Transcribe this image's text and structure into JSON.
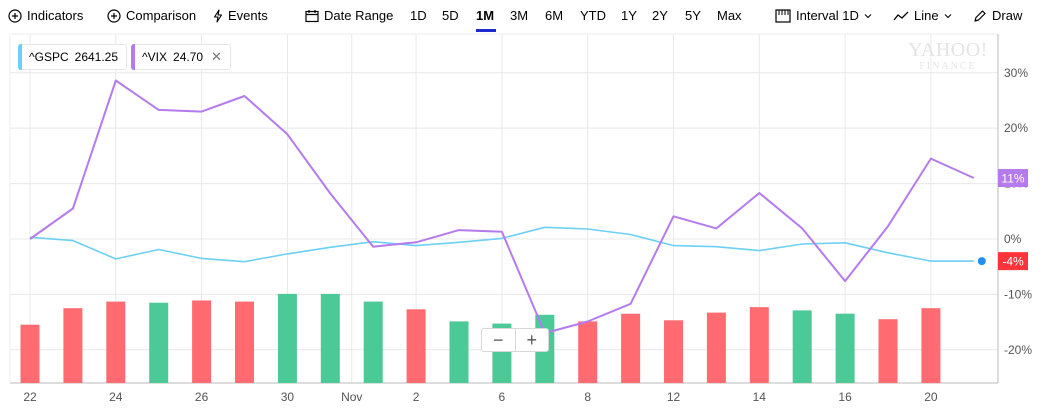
{
  "toolbar": {
    "indicators_label": "Indicators",
    "comparison_label": "Comparison",
    "events_label": "Events",
    "date_range_label": "Date Range",
    "ranges": [
      "1D",
      "5D",
      "1M",
      "3M",
      "6M",
      "YTD",
      "1Y",
      "2Y",
      "5Y",
      "Max"
    ],
    "active_range": "1M",
    "interval_label": "Interval",
    "interval_value": "1D",
    "chart_type_label": "Line",
    "draw_label": "Draw"
  },
  "legend": [
    {
      "symbol": "^GSPC",
      "value": "2641.25",
      "color": "#6cd0f5",
      "removable": false
    },
    {
      "symbol": "^VIX",
      "value": "24.70",
      "color": "#b57bee",
      "removable": true
    }
  ],
  "watermark": {
    "line1": "YAHOO!",
    "line2": "FINANCE"
  },
  "zoom": {
    "minus": "−",
    "plus": "+"
  },
  "colors": {
    "up": "#4bc997",
    "down": "#ff6b70",
    "gspc": "#6cd0f5",
    "vix": "#b57bee",
    "grid": "#e8e8e8",
    "axis": "#999999",
    "badge_vix": "#b57bee",
    "badge_gspc": "#ff333a"
  },
  "chart_data": {
    "type": "line",
    "y_unit": "%",
    "ylim": [
      -26,
      37
    ],
    "y_ticks": [
      30,
      20,
      10,
      0,
      -10,
      -20
    ],
    "y_tick_labels": [
      "30%",
      "20%",
      "10%",
      "0%",
      "-10%",
      "-20%"
    ],
    "x_tick_labels": [
      {
        "i": 0,
        "label": "22"
      },
      {
        "i": 2,
        "label": "24"
      },
      {
        "i": 4,
        "label": "26"
      },
      {
        "i": 6,
        "label": "30"
      },
      {
        "i": 7.5,
        "label": "Nov"
      },
      {
        "i": 9,
        "label": "2"
      },
      {
        "i": 11,
        "label": "6"
      },
      {
        "i": 13,
        "label": "8"
      },
      {
        "i": 15,
        "label": "12"
      },
      {
        "i": 17,
        "label": "14"
      },
      {
        "i": 19,
        "label": "16"
      },
      {
        "i": 21,
        "label": "20"
      }
    ],
    "grid": true,
    "series": [
      {
        "name": "^GSPC",
        "values": [
          0.3,
          -0.3,
          -3.6,
          -1.9,
          -3.5,
          -4.1,
          -2.7,
          -1.5,
          -0.5,
          -1.2,
          -0.6,
          0.1,
          2.1,
          1.8,
          0.8,
          -1.2,
          -1.4,
          -2.1,
          -0.9,
          -0.7,
          -2.5,
          -4.0,
          -4.0
        ],
        "last_label": "-4%"
      },
      {
        "name": "^VIX",
        "values": [
          0.0,
          5.5,
          28.6,
          23.3,
          23.0,
          25.8,
          18.9,
          8.2,
          -1.4,
          -0.6,
          1.6,
          1.3,
          -17.0,
          -14.9,
          -11.7,
          4.1,
          1.9,
          8.3,
          1.9,
          -7.6,
          2.3,
          14.5,
          11.0
        ],
        "last_label": "11%"
      }
    ],
    "volume": {
      "relative": [
        0.53,
        0.68,
        0.74,
        0.73,
        0.75,
        0.74,
        0.81,
        0.81,
        0.74,
        0.67,
        0.56,
        0.54,
        0.62,
        0.56,
        0.63,
        0.57,
        0.64,
        0.69,
        0.66,
        0.63,
        0.58,
        0.68
      ],
      "direction": [
        "down",
        "down",
        "down",
        "up",
        "down",
        "down",
        "up",
        "up",
        "up",
        "down",
        "up",
        "up",
        "up",
        "down",
        "down",
        "down",
        "down",
        "down",
        "up",
        "up",
        "down",
        "down"
      ]
    }
  }
}
